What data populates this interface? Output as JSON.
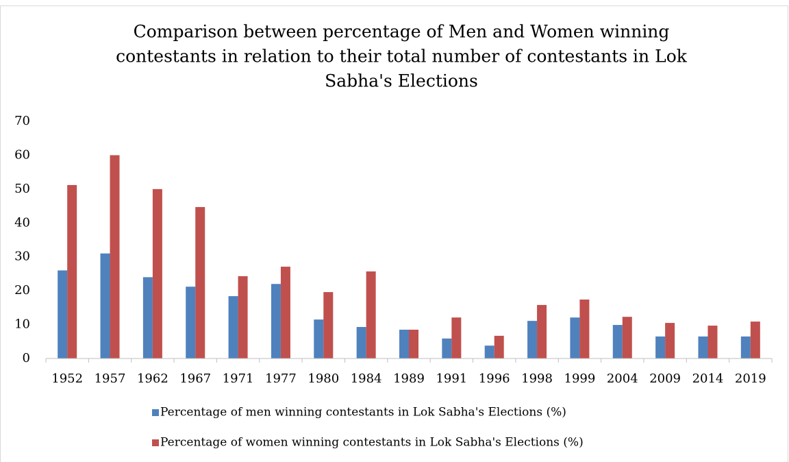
{
  "chart_data": {
    "type": "bar",
    "title": [
      "Comparison between percentage of Men and Women winning",
      "contestants in relation to their total number of contestants in Lok",
      "Sabha's Elections"
    ],
    "categories": [
      "1952",
      "1957",
      "1962",
      "1967",
      "1971",
      "1977",
      "1980",
      "1984",
      "1989",
      "1991",
      "1996",
      "1998",
      "1999",
      "2004",
      "2009",
      "2014",
      "2019"
    ],
    "series": [
      {
        "name": "Percentage of men winning contestants in Lok Sabha's Elections (%)",
        "color": "#4f81bd",
        "values": [
          26,
          31,
          24,
          21.2,
          18.4,
          22,
          11.5,
          9.3,
          8.5,
          5.9,
          3.8,
          11.1,
          12.1,
          9.9,
          6.5,
          6.5,
          6.5
        ]
      },
      {
        "name": "Percentage of women winning contestants in Lok Sabha's Elections (%)",
        "color": "#c0504d",
        "values": [
          51.2,
          60,
          50,
          44.7,
          24.3,
          27.1,
          19.6,
          25.7,
          8.5,
          12.1,
          6.7,
          15.8,
          17.4,
          12.3,
          10.5,
          9.7,
          10.9
        ]
      }
    ],
    "ylim": [
      0,
      70
    ],
    "yticks": [
      0,
      10,
      20,
      30,
      40,
      50,
      60,
      70
    ],
    "grid": false,
    "legend": "bottom"
  }
}
